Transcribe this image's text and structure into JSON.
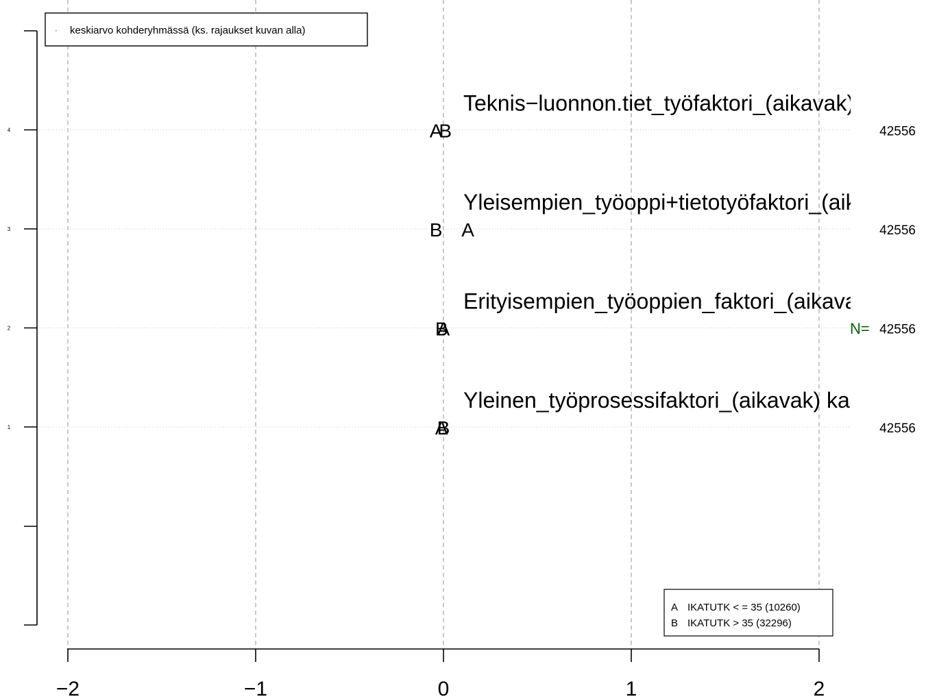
{
  "chart_data": {
    "type": "scatter",
    "title": "",
    "xlabel": "",
    "ylabel": "",
    "xlim": [
      -2,
      2
    ],
    "ylim": [
      -1,
      5
    ],
    "x_ticks": [
      "−2",
      "−1",
      "0",
      "1",
      "2"
    ],
    "x_tick_values": [
      -2,
      -1,
      0,
      1,
      2
    ],
    "y_small_ticks": [
      "1",
      "2",
      "3",
      "4"
    ],
    "y_small_tick_values": [
      1,
      2,
      3,
      4
    ],
    "grid": "vertical dashed at x ticks, horizontal dotted at rows",
    "top_legend": {
      "position": "top-left",
      "marker": "·",
      "text": "keskiarvo kohderyhmässä (ks. rajaukset kuvan alla)"
    },
    "group_legend": {
      "position": "bottom-right",
      "entries": [
        {
          "letter": "A",
          "label": "IKATUTK < = 35 (10260)"
        },
        {
          "letter": "B",
          "label": "IKATUTK > 35 (32296)"
        }
      ]
    },
    "n_label": "N=",
    "n_label_color": "#006400",
    "rows": [
      {
        "y": 4,
        "label": "Teknis−luonnon.tiet_työfaktori_(aikavak)",
        "n": "42556",
        "A": -0.04,
        "B": 0.01
      },
      {
        "y": 3,
        "label": "Yleisempien_työoppi+tietotyöfaktori_(aik",
        "n": "42556",
        "A": 0.13,
        "B": -0.04
      },
      {
        "y": 2,
        "label": "Erityisempien_työoppien_faktori_(aikava",
        "n": "42556",
        "A": 0.0,
        "B": -0.01
      },
      {
        "y": 1,
        "label": "Yleinen_työprosessifaktori_(aikavak) kar",
        "n": "42556",
        "A": -0.01,
        "B": 0.0
      }
    ],
    "series": [
      {
        "name": "A",
        "values": [
          -0.04,
          0.13,
          0.0,
          -0.01
        ]
      },
      {
        "name": "B",
        "values": [
          0.01,
          -0.04,
          -0.01,
          0.0
        ]
      }
    ]
  }
}
